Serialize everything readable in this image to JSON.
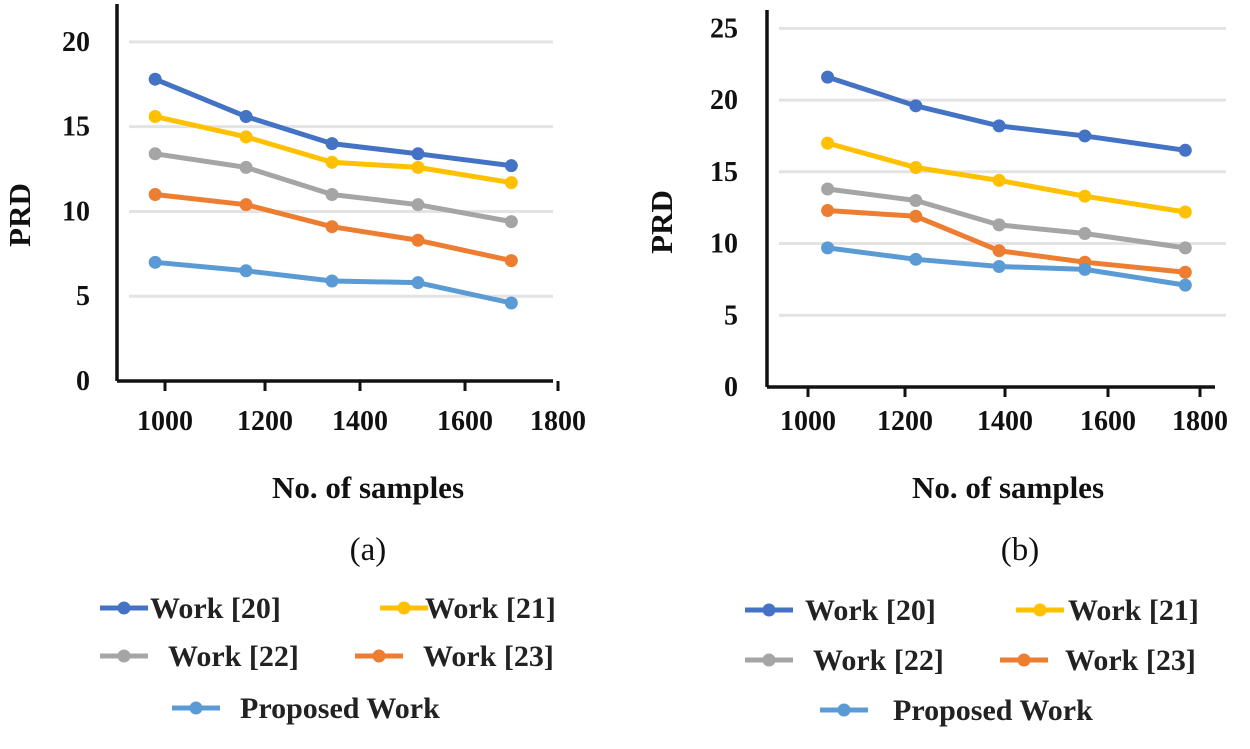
{
  "chart_data": [
    {
      "type": "line",
      "panel_label": "(a)",
      "xlabel": "No. of samples",
      "ylabel": "PRD",
      "xlim": [
        900,
        1800
      ],
      "ylim": [
        0,
        22
      ],
      "x_ticks": [
        1000,
        1200,
        1400,
        1600,
        1800
      ],
      "y_ticks": [
        0,
        5,
        10,
        15,
        20
      ],
      "x": [
        980,
        1165,
        1340,
        1515,
        1705
      ],
      "series": [
        {
          "name": "Work [20]",
          "color": "#4472C4",
          "values": [
            17.8,
            15.6,
            14.0,
            13.4,
            12.7
          ]
        },
        {
          "name": "Work [21]",
          "color": "#FFC000",
          "values": [
            15.6,
            14.4,
            12.9,
            12.6,
            11.7
          ]
        },
        {
          "name": "Work [22]",
          "color": "#A5A5A5",
          "values": [
            13.4,
            12.6,
            11.0,
            10.4,
            9.4
          ]
        },
        {
          "name": "Work [23]",
          "color": "#ED7D31",
          "values": [
            11.0,
            10.4,
            9.1,
            8.3,
            7.1
          ]
        },
        {
          "name": "Proposed Work",
          "color": "#5B9BD5",
          "values": [
            7.0,
            6.5,
            5.9,
            5.8,
            4.6
          ]
        }
      ]
    },
    {
      "type": "line",
      "panel_label": "(b)",
      "xlabel": "No. of samples",
      "ylabel": "PRD",
      "xlim": [
        900,
        1800
      ],
      "ylim": [
        0,
        26
      ],
      "x_ticks": [
        1000,
        1200,
        1400,
        1600,
        1800
      ],
      "y_ticks": [
        0,
        5,
        10,
        15,
        20,
        25
      ],
      "x": [
        1040,
        1220,
        1390,
        1565,
        1770
      ],
      "series": [
        {
          "name": "Work [20]",
          "color": "#4472C4",
          "values": [
            21.6,
            19.6,
            18.2,
            17.5,
            16.5
          ]
        },
        {
          "name": "Work [21]",
          "color": "#FFC000",
          "values": [
            17.0,
            15.3,
            14.4,
            13.3,
            12.2
          ]
        },
        {
          "name": "Work [22]",
          "color": "#A5A5A5",
          "values": [
            13.8,
            13.0,
            11.3,
            10.7,
            9.7
          ]
        },
        {
          "name": "Work [23]",
          "color": "#ED7D31",
          "values": [
            12.3,
            11.9,
            9.5,
            8.7,
            8.0
          ]
        },
        {
          "name": "Proposed Work",
          "color": "#5B9BD5",
          "values": [
            9.7,
            8.9,
            8.4,
            8.2,
            7.1
          ]
        }
      ]
    }
  ]
}
